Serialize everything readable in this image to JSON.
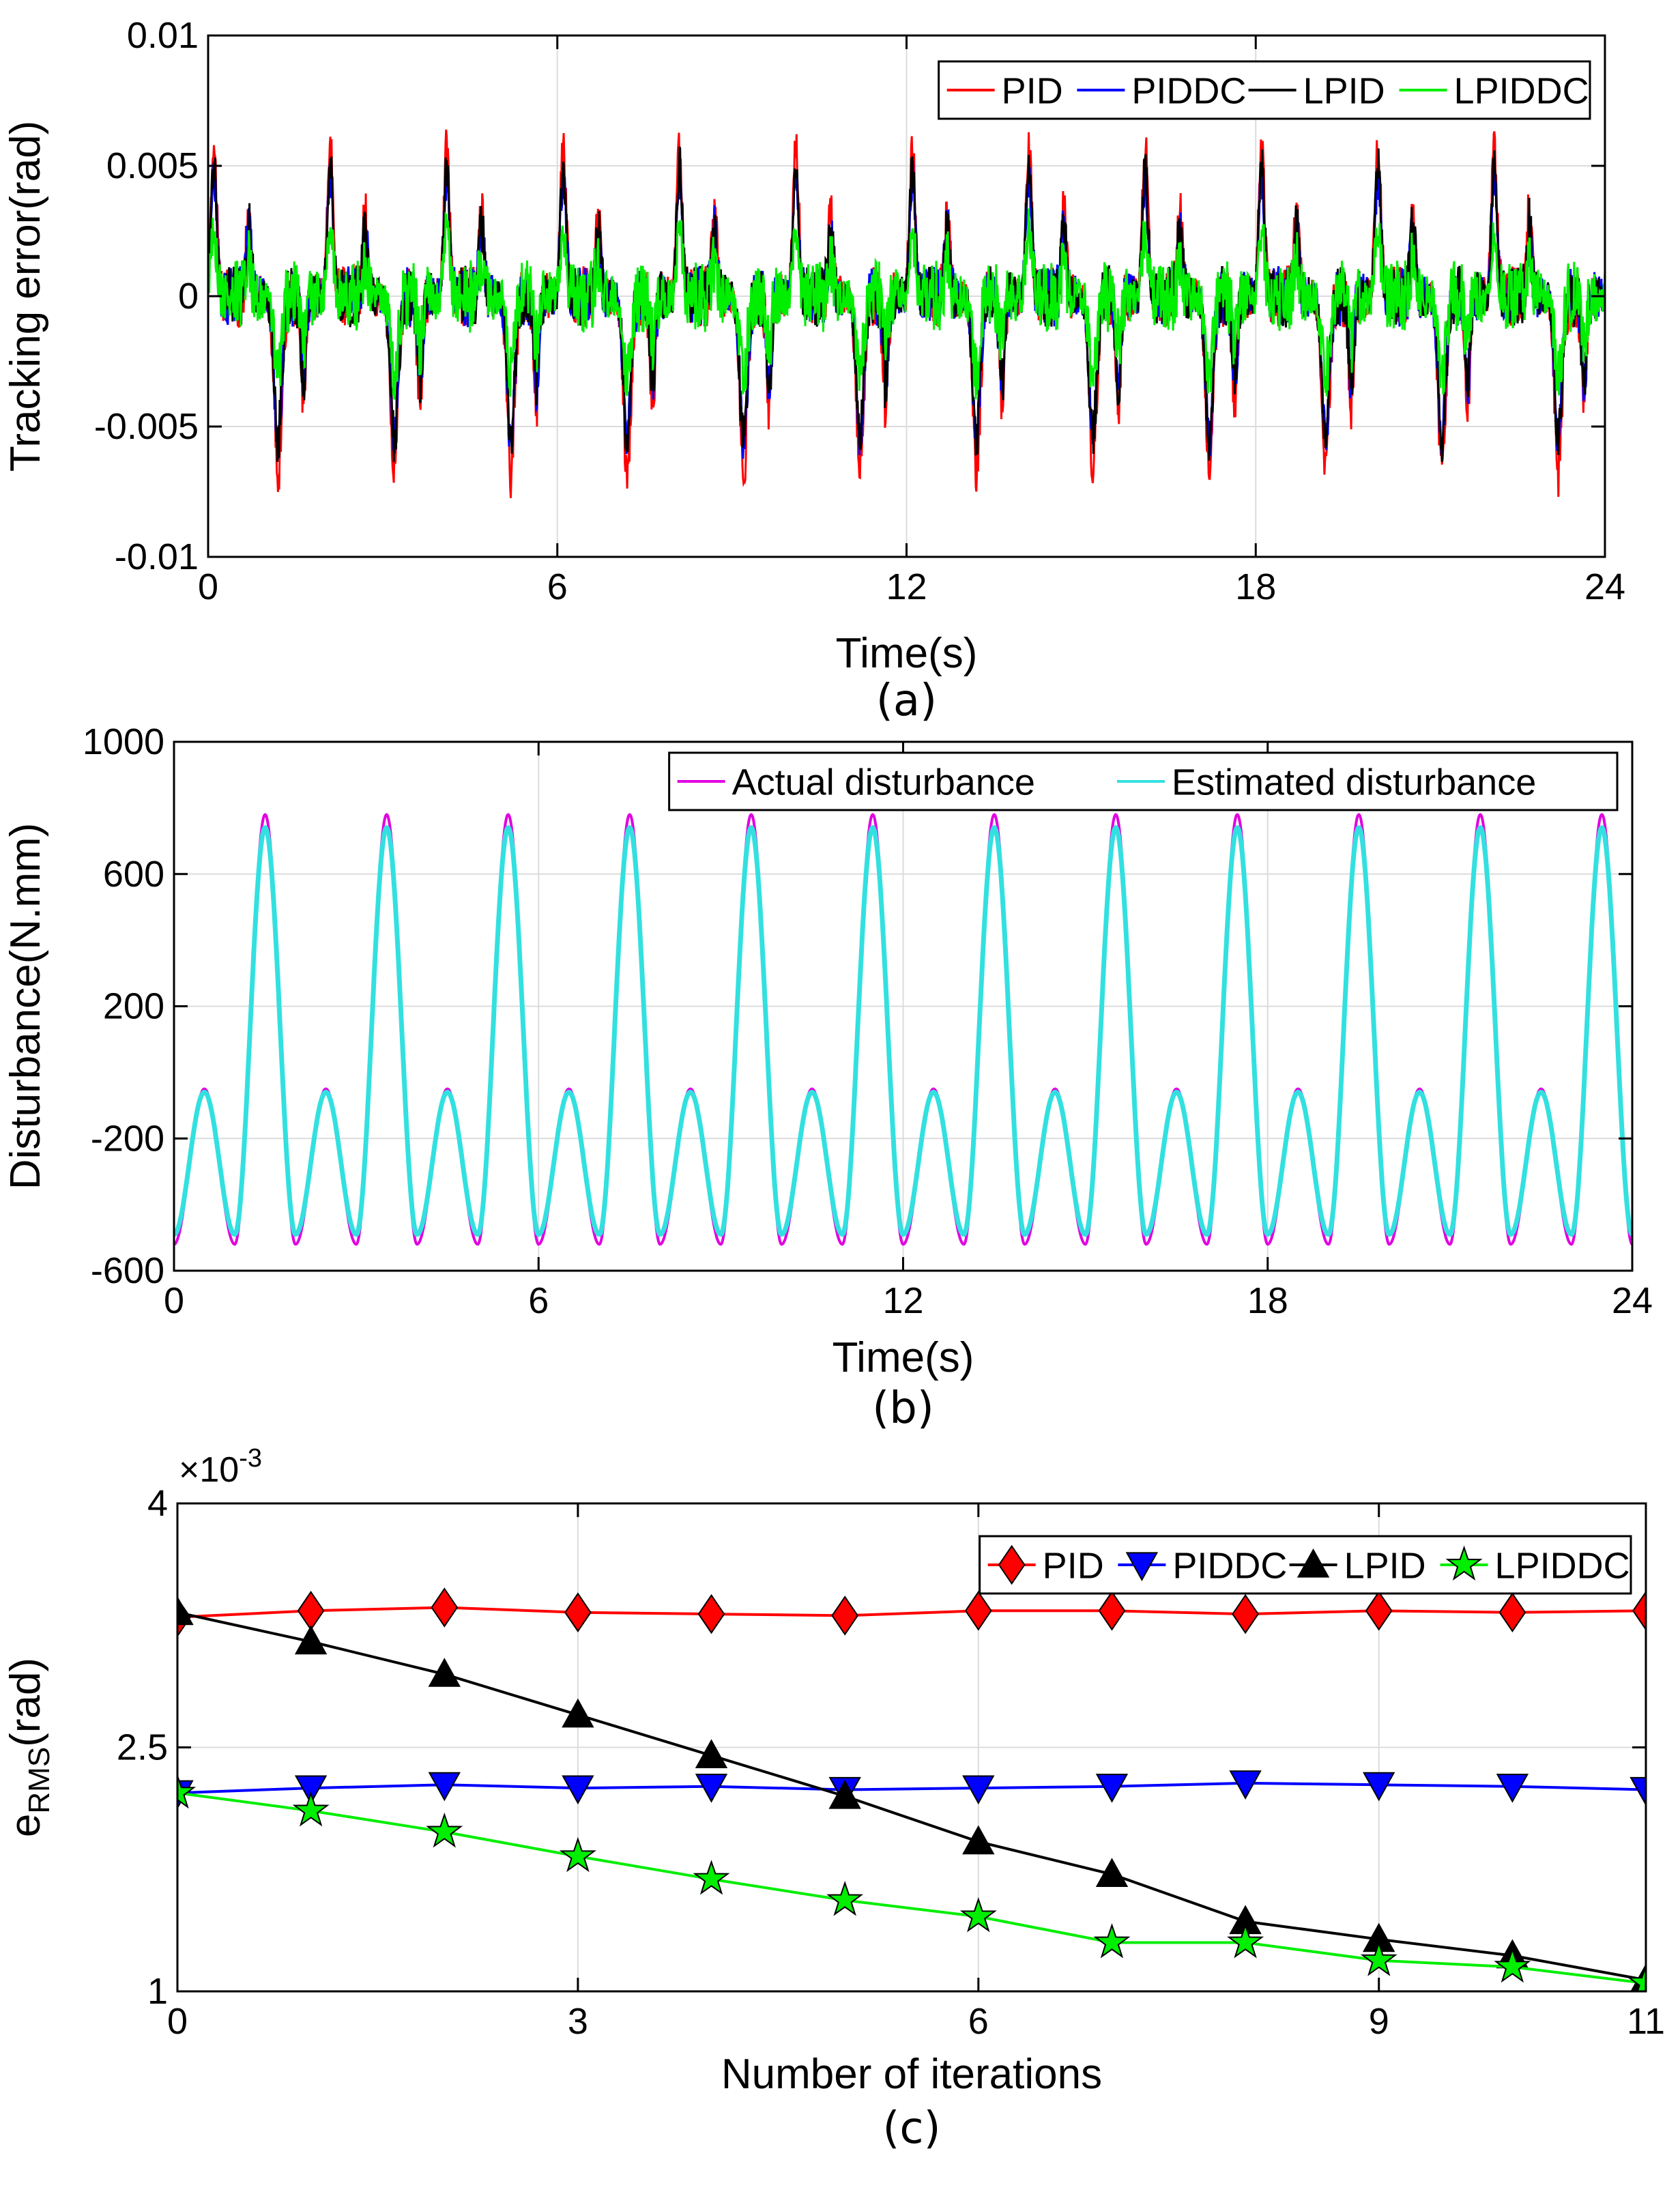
{
  "chart_data": [
    {
      "panel": "a",
      "type": "line",
      "caption": "(a)",
      "xlabel": "Time(s)",
      "ylabel": "Tracking error(rad)",
      "xlim": [
        0,
        24
      ],
      "ylim": [
        -0.01,
        0.01
      ],
      "xticks": [
        0,
        6,
        12,
        18,
        24
      ],
      "xtick_labels": [
        "0",
        "6",
        "12",
        "18",
        "24"
      ],
      "yticks": [
        -0.01,
        -0.005,
        0,
        0.005,
        0.01
      ],
      "ytick_labels": [
        "-0.01",
        "-0.005",
        "0",
        "0.005",
        "0.01"
      ],
      "grid": true,
      "legend_position": "top-right",
      "series": [
        {
          "name": "PID",
          "color": "#ff0000",
          "model": {
            "period": 2,
            "pos_peak": 0.0058,
            "neg_peak": -0.0068,
            "noise": 0.0012
          }
        },
        {
          "name": "PIDDC",
          "color": "#0000ff",
          "model": {
            "period": 2,
            "pos_peak": 0.0045,
            "neg_peak": -0.0055,
            "noise": 0.0012
          }
        },
        {
          "name": "LPID",
          "color": "#000000",
          "model": {
            "period": 2,
            "pos_peak": 0.005,
            "neg_peak": -0.0055,
            "noise": 0.0012
          }
        },
        {
          "name": "LPIDDC",
          "color": "#00ee00",
          "model": {
            "period": 2,
            "pos_peak": 0.0025,
            "neg_peak": -0.003,
            "noise": 0.0014
          }
        }
      ]
    },
    {
      "panel": "b",
      "type": "line",
      "caption": "(b)",
      "xlabel": "Time(s)",
      "ylabel": "Disturbance(N.mm)",
      "xlim": [
        0,
        24
      ],
      "ylim": [
        -600,
        1000
      ],
      "xticks": [
        0,
        6,
        12,
        18,
        24
      ],
      "xtick_labels": [
        "0",
        "6",
        "12",
        "18",
        "24"
      ],
      "yticks": [
        -600,
        -200,
        200,
        600,
        1000
      ],
      "ytick_labels": [
        "-600",
        "-200",
        "200",
        "600",
        "1000"
      ],
      "grid": true,
      "legend_position": "top-right",
      "series": [
        {
          "name": "Actual disturbance",
          "color": "#e000e0",
          "model": {
            "period": 2,
            "offset": 0,
            "peak": 780,
            "secondary_peak": -50,
            "trough": -520
          }
        },
        {
          "name": "Estimated disturbance",
          "color": "#33e0e0",
          "model": {
            "period": 2,
            "offset": 0,
            "peak": 740,
            "secondary_peak": -60,
            "trough": -490
          }
        }
      ]
    },
    {
      "panel": "c",
      "type": "line",
      "caption": "(c)",
      "xlabel": "Number of iterations",
      "ylabel": "e",
      "ylabel_subscript": "RMS",
      "ylabel_suffix": "(rad)",
      "y_multiplier_base": "×10",
      "y_multiplier_exp": "-3",
      "xlim": [
        0,
        11
      ],
      "ylim": [
        1,
        4
      ],
      "xticks": [
        0,
        3,
        6,
        9,
        11
      ],
      "xtick_labels": [
        "0",
        "3",
        "6",
        "9",
        "11"
      ],
      "yticks": [
        1,
        2.5,
        4
      ],
      "ytick_labels": [
        "1",
        "2.5",
        "4"
      ],
      "grid": true,
      "legend_position": "top-right",
      "x": [
        0,
        1,
        2,
        3,
        4,
        5,
        6,
        7,
        8,
        9,
        10,
        11
      ],
      "series": [
        {
          "name": "PID",
          "color": "#ff0000",
          "marker": "diamond",
          "values": [
            3.3,
            3.34,
            3.36,
            3.33,
            3.32,
            3.31,
            3.34,
            3.34,
            3.32,
            3.34,
            3.33,
            3.34
          ]
        },
        {
          "name": "PIDDC",
          "color": "#0000ff",
          "marker": "triangle-down",
          "values": [
            2.22,
            2.25,
            2.27,
            2.25,
            2.26,
            2.24,
            2.25,
            2.26,
            2.28,
            2.27,
            2.26,
            2.24
          ]
        },
        {
          "name": "LPID",
          "color": "#000000",
          "marker": "triangle-up",
          "values": [
            3.33,
            3.15,
            2.95,
            2.7,
            2.45,
            2.2,
            1.92,
            1.72,
            1.43,
            1.32,
            1.22,
            1.07
          ]
        },
        {
          "name": "LPIDDC",
          "color": "#00ee00",
          "marker": "pentagram",
          "values": [
            2.22,
            2.11,
            1.98,
            1.83,
            1.69,
            1.56,
            1.46,
            1.3,
            1.3,
            1.19,
            1.15,
            1.05
          ]
        }
      ]
    }
  ]
}
